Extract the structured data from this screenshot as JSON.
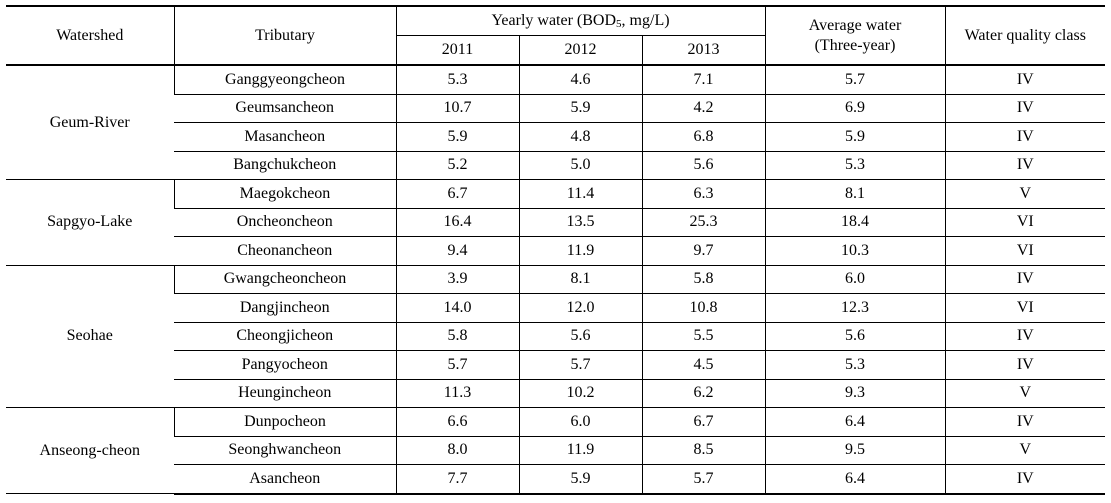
{
  "header": {
    "watershed": "Watershed",
    "tributary": "Tributary",
    "yearly_prefix": "Yearly water (BOD",
    "yearly_sub": "5",
    "yearly_suffix": ", mg/L)",
    "years": [
      "2011",
      "2012",
      "2013"
    ],
    "average_line1": "Average water",
    "average_line2": "(Three-year)",
    "class": "Water quality class"
  },
  "groups": [
    {
      "watershed": "Geum-River",
      "rows": [
        {
          "tributary": "Ganggyeongcheon",
          "y2011": "5.3",
          "y2012": "4.6",
          "y2013": "7.1",
          "avg": "5.7",
          "cls": "IV"
        },
        {
          "tributary": "Geumsancheon",
          "y2011": "10.7",
          "y2012": "5.9",
          "y2013": "4.2",
          "avg": "6.9",
          "cls": "IV"
        },
        {
          "tributary": "Masancheon",
          "y2011": "5.9",
          "y2012": "4.8",
          "y2013": "6.8",
          "avg": "5.9",
          "cls": "IV"
        },
        {
          "tributary": "Bangchukcheon",
          "y2011": "5.2",
          "y2012": "5.0",
          "y2013": "5.6",
          "avg": "5.3",
          "cls": "IV"
        }
      ]
    },
    {
      "watershed": "Sapgyo-Lake",
      "rows": [
        {
          "tributary": "Maegokcheon",
          "y2011": "6.7",
          "y2012": "11.4",
          "y2013": "6.3",
          "avg": "8.1",
          "cls": "V"
        },
        {
          "tributary": "Oncheoncheon",
          "y2011": "16.4",
          "y2012": "13.5",
          "y2013": "25.3",
          "avg": "18.4",
          "cls": "VI"
        },
        {
          "tributary": "Cheonancheon",
          "y2011": "9.4",
          "y2012": "11.9",
          "y2013": "9.7",
          "avg": "10.3",
          "cls": "VI"
        }
      ]
    },
    {
      "watershed": "Seohae",
      "rows": [
        {
          "tributary": "Gwangcheoncheon",
          "y2011": "3.9",
          "y2012": "8.1",
          "y2013": "5.8",
          "avg": "6.0",
          "cls": "IV"
        },
        {
          "tributary": "Dangjincheon",
          "y2011": "14.0",
          "y2012": "12.0",
          "y2013": "10.8",
          "avg": "12.3",
          "cls": "VI"
        },
        {
          "tributary": "Cheongjicheon",
          "y2011": "5.8",
          "y2012": "5.6",
          "y2013": "5.5",
          "avg": "5.6",
          "cls": "IV"
        },
        {
          "tributary": "Pangyocheon",
          "y2011": "5.7",
          "y2012": "5.7",
          "y2013": "4.5",
          "avg": "5.3",
          "cls": "IV"
        },
        {
          "tributary": "Heungincheon",
          "y2011": "11.3",
          "y2012": "10.2",
          "y2013": "6.2",
          "avg": "9.3",
          "cls": "V"
        }
      ]
    },
    {
      "watershed": "Anseong-cheon",
      "rows": [
        {
          "tributary": "Dunpocheon",
          "y2011": "6.6",
          "y2012": "6.0",
          "y2013": "6.7",
          "avg": "6.4",
          "cls": "IV"
        },
        {
          "tributary": "Seonghwancheon",
          "y2011": "8.0",
          "y2012": "11.9",
          "y2013": "8.5",
          "avg": "9.5",
          "cls": "V"
        },
        {
          "tributary": "Asancheon",
          "y2011": "7.7",
          "y2012": "5.9",
          "y2013": "5.7",
          "avg": "6.4",
          "cls": "IV"
        }
      ]
    }
  ]
}
